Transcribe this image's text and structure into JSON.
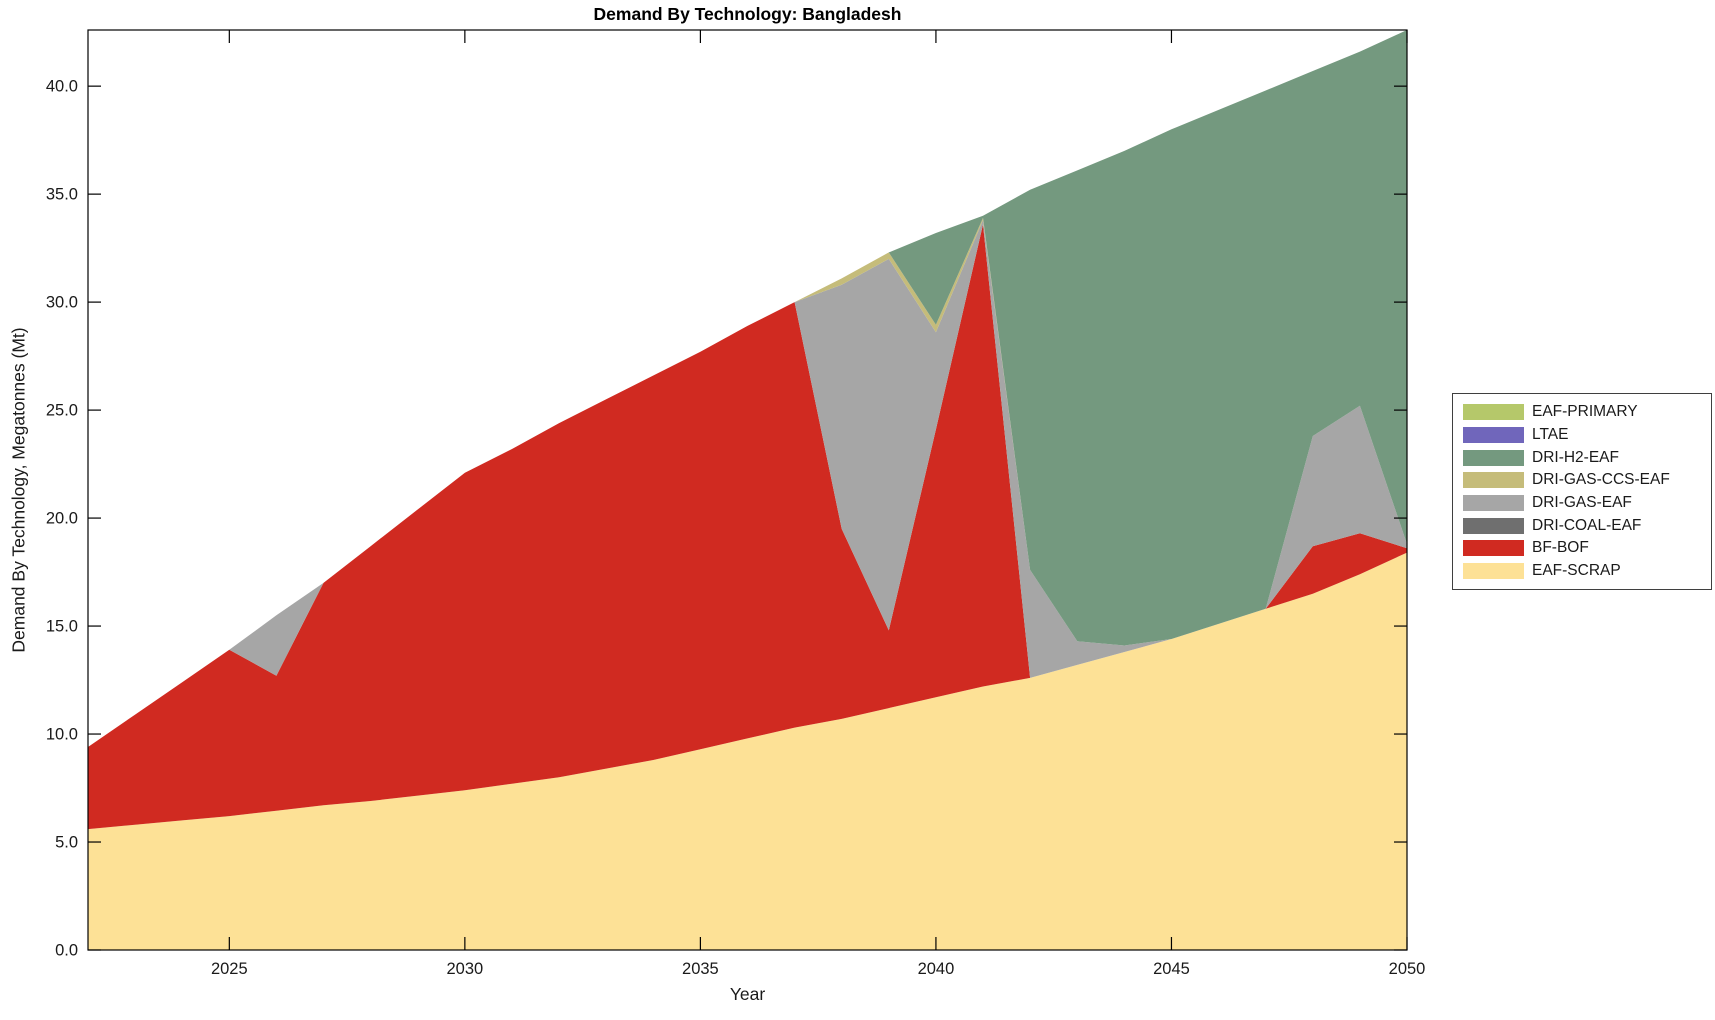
{
  "title": "Demand By Technology: Bangladesh",
  "axes": {
    "x": {
      "label": "Year",
      "ticks": [
        "2025",
        "2030",
        "2035",
        "2040",
        "2045",
        "2050"
      ],
      "tick_values": [
        2025,
        2030,
        2035,
        2040,
        2045,
        2050
      ],
      "range": [
        2022,
        2050
      ]
    },
    "y": {
      "label": "Demand By Technology, Megatonnes (Mt)",
      "ticks": [
        "0.0",
        "5.0",
        "10.0",
        "15.0",
        "20.0",
        "25.0",
        "30.0",
        "35.0",
        "40.0"
      ],
      "tick_values": [
        0,
        5,
        10,
        15,
        20,
        25,
        30,
        35,
        40
      ],
      "range": [
        0,
        42.6
      ]
    }
  },
  "legend": {
    "position": "right-outside",
    "entries": [
      {
        "label": "EAF-PRIMARY",
        "color": "#b5c86a"
      },
      {
        "label": "LTAE",
        "color": "#7066bb"
      },
      {
        "label": "DRI-H2-EAF",
        "color": "#74997f"
      },
      {
        "label": "DRI-GAS-CCS-EAF",
        "color": "#c5bc7a"
      },
      {
        "label": "DRI-GAS-EAF",
        "color": "#a6a6a6"
      },
      {
        "label": "DRI-COAL-EAF",
        "color": "#6f6f6f"
      },
      {
        "label": "BF-BOF",
        "color": "#d02a21"
      },
      {
        "label": "EAF-SCRAP",
        "color": "#fde196"
      }
    ]
  },
  "chart_data": {
    "type": "area",
    "stacked": true,
    "title": "Demand By Technology: Bangladesh",
    "xlabel": "Year",
    "ylabel": "Demand By Technology, Megatonnes (Mt)",
    "xlim": [
      2022,
      2050
    ],
    "ylim": [
      0,
      42.6
    ],
    "grid": false,
    "legend_position": "right-outside",
    "x": [
      2022,
      2023,
      2024,
      2025,
      2026,
      2027,
      2028,
      2029,
      2030,
      2031,
      2032,
      2033,
      2034,
      2035,
      2036,
      2037,
      2038,
      2039,
      2040,
      2041,
      2042,
      2043,
      2044,
      2045,
      2046,
      2047,
      2048,
      2049,
      2050
    ],
    "series": [
      {
        "name": "EAF-SCRAP",
        "color": "#fde196",
        "values": [
          5.6,
          5.8,
          6.0,
          6.2,
          6.45,
          6.7,
          6.9,
          7.15,
          7.4,
          7.7,
          8.0,
          8.4,
          8.8,
          9.3,
          9.8,
          10.3,
          10.7,
          11.2,
          11.7,
          12.2,
          12.6,
          13.2,
          13.8,
          14.4,
          15.1,
          15.8,
          16.5,
          17.4,
          18.4
        ]
      },
      {
        "name": "BF-BOF",
        "color": "#d02a21",
        "values": [
          3.8,
          5.1,
          6.4,
          7.7,
          6.25,
          10.3,
          11.8,
          13.25,
          14.7,
          15.5,
          16.4,
          17.1,
          17.8,
          18.4,
          19.1,
          19.7,
          8.8,
          3.6,
          12.4,
          21.4,
          0,
          0,
          0,
          0,
          0,
          0,
          2.2,
          1.9,
          0.2
        ]
      },
      {
        "name": "DRI-COAL-EAF",
        "color": "#6f6f6f",
        "values": [
          0,
          0,
          0,
          0,
          0,
          0,
          0,
          0,
          0,
          0,
          0,
          0,
          0,
          0,
          0,
          0,
          0,
          0,
          0,
          0,
          0,
          0,
          0,
          0,
          0,
          0,
          0,
          0,
          0
        ]
      },
      {
        "name": "DRI-GAS-EAF",
        "color": "#a6a6a6",
        "values": [
          0,
          0,
          0,
          0,
          2.8,
          0,
          0,
          0,
          0,
          0,
          0,
          0,
          0,
          0,
          0,
          0,
          11.3,
          17.2,
          4.5,
          0.2,
          5.0,
          1.1,
          0.3,
          0,
          0,
          0,
          5.1,
          5.9,
          0.2
        ]
      },
      {
        "name": "DRI-GAS-CCS-EAF",
        "color": "#c5bc7a",
        "values": [
          0,
          0,
          0,
          0,
          0,
          0,
          0,
          0,
          0,
          0,
          0,
          0,
          0,
          0,
          0,
          0,
          0.3,
          0.3,
          0.35,
          0.1,
          0,
          0,
          0,
          0,
          0,
          0,
          0,
          0,
          0
        ]
      },
      {
        "name": "DRI-H2-EAF",
        "color": "#74997f",
        "values": [
          0,
          0,
          0,
          0,
          0,
          0,
          0,
          0,
          0,
          0,
          0,
          0,
          0,
          0,
          0,
          0,
          0,
          0,
          4.25,
          0.1,
          17.6,
          21.8,
          22.9,
          23.6,
          23.8,
          24.0,
          16.9,
          16.4,
          23.8
        ]
      },
      {
        "name": "LTAE",
        "color": "#7066bb",
        "values": [
          0,
          0,
          0,
          0,
          0,
          0,
          0,
          0,
          0,
          0,
          0,
          0,
          0,
          0,
          0,
          0,
          0,
          0,
          0,
          0,
          0,
          0,
          0,
          0,
          0,
          0,
          0,
          0,
          0
        ]
      },
      {
        "name": "EAF-PRIMARY",
        "color": "#b5c86a",
        "values": [
          0,
          0,
          0,
          0,
          0,
          0,
          0,
          0,
          0,
          0,
          0,
          0,
          0,
          0,
          0,
          0,
          0,
          0,
          0,
          0,
          0,
          0,
          0,
          0,
          0,
          0,
          0,
          0,
          0
        ]
      }
    ]
  }
}
